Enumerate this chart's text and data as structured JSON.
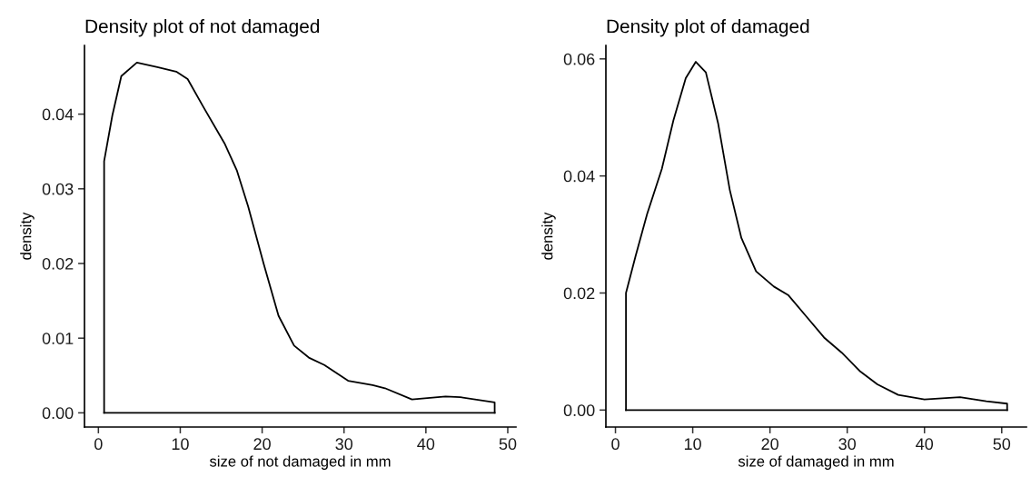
{
  "chart_data": [
    {
      "type": "line",
      "title": "Density plot of not damaged",
      "xlabel": "size of not damaged in mm",
      "ylabel": "density",
      "series": [
        {
          "color": "#000000",
          "x": [
            0.7,
            0.7,
            1.7,
            2.8,
            4.7,
            7.2,
            9.5,
            10.9,
            12.8,
            15.4,
            16.9,
            18.3,
            20.2,
            22.0,
            23.9,
            25.7,
            27.6,
            30.5,
            33.5,
            35.0,
            38.3,
            42.4,
            44.2,
            48.4,
            48.4
          ],
          "values": [
            0,
            0.0337,
            0.0398,
            0.0451,
            0.0469,
            0.0463,
            0.0457,
            0.0447,
            0.041,
            0.0361,
            0.0325,
            0.0276,
            0.0199,
            0.013,
            0.009,
            0.0074,
            0.0064,
            0.0043,
            0.0037,
            0.0033,
            0.0018,
            0.0022,
            0.0021,
            0.0014,
            0
          ]
        },
        {
          "color": "#000000",
          "x": [
            0.7,
            48.4
          ],
          "values": [
            0,
            0
          ]
        }
      ],
      "xlim": [
        -1.7,
        51.0
      ],
      "xticks": [
        0,
        10,
        20,
        30,
        40,
        50
      ],
      "ylim": [
        -0.0019,
        0.0492
      ],
      "yticks": [
        {
          "value": 0,
          "label": "0.00"
        },
        {
          "value": 0.01,
          "label": "0.01"
        },
        {
          "value": 0.02,
          "label": "0.02"
        },
        {
          "value": 0.03,
          "label": "0.03"
        },
        {
          "value": 0.04,
          "label": "0.04"
        }
      ],
      "grid": false,
      "legend": false
    },
    {
      "type": "line",
      "title": "Density plot of damaged",
      "xlabel": "size of damaged in mm",
      "ylabel": "density",
      "series": [
        {
          "color": "#000000",
          "x": [
            1.36,
            1.36,
            2.6,
            4.1,
            6.0,
            7.5,
            9.1,
            10.4,
            11.7,
            13.3,
            14.8,
            16.3,
            18.2,
            20.5,
            22.4,
            24.7,
            27.0,
            29.3,
            31.6,
            33.9,
            36.6,
            40.0,
            44.6,
            48.0,
            50.7,
            50.7
          ],
          "values": [
            0,
            0.02,
            0.0263,
            0.0335,
            0.0412,
            0.0495,
            0.0567,
            0.0595,
            0.0577,
            0.0489,
            0.0376,
            0.0294,
            0.0237,
            0.0211,
            0.0196,
            0.016,
            0.0124,
            0.0098,
            0.0067,
            0.0044,
            0.0026,
            0.0018,
            0.0022,
            0.0015,
            0.0011,
            0
          ]
        },
        {
          "color": "#000000",
          "x": [
            1.36,
            50.7
          ],
          "values": [
            0,
            0
          ]
        }
      ],
      "xlim": [
        -1.24,
        53.2
      ],
      "xticks": [
        0,
        10,
        20,
        30,
        40,
        50
      ],
      "ylim": [
        -0.0029,
        0.0623
      ],
      "yticks": [
        {
          "value": 0,
          "label": "0.00"
        },
        {
          "value": 0.02,
          "label": "0.02"
        },
        {
          "value": 0.04,
          "label": "0.04"
        },
        {
          "value": 0.06,
          "label": "0.06"
        }
      ],
      "grid": false,
      "legend": false
    }
  ]
}
